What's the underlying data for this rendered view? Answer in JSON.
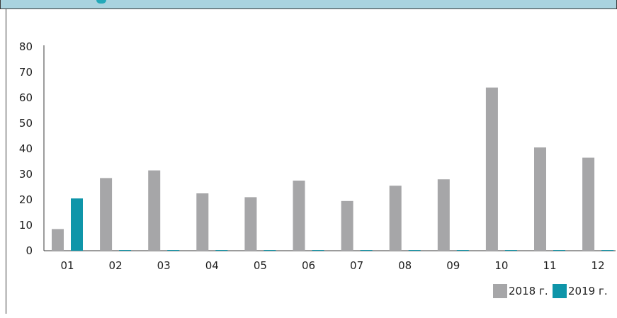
{
  "chart_data": {
    "type": "bar",
    "categories": [
      "01",
      "02",
      "03",
      "04",
      "05",
      "06",
      "07",
      "08",
      "09",
      "10",
      "11",
      "12"
    ],
    "series": [
      {
        "name": "2018 г.",
        "color": "#a6a6a8",
        "values": [
          8.5,
          28.5,
          31.5,
          22.5,
          21,
          27.5,
          19.5,
          25.5,
          28,
          64,
          40.5,
          36.5
        ]
      },
      {
        "name": "2019 г.",
        "color": "#0e95a9",
        "values": [
          20.5,
          0,
          0,
          0,
          0,
          0,
          0,
          0,
          0,
          0,
          0,
          0
        ]
      }
    ],
    "ylim": [
      0,
      80
    ],
    "yticks": [
      0,
      10,
      20,
      30,
      40,
      50,
      60,
      70,
      80
    ],
    "xlabel": "",
    "ylabel": "",
    "title": "",
    "grid": false,
    "legend": "bottom-right"
  }
}
